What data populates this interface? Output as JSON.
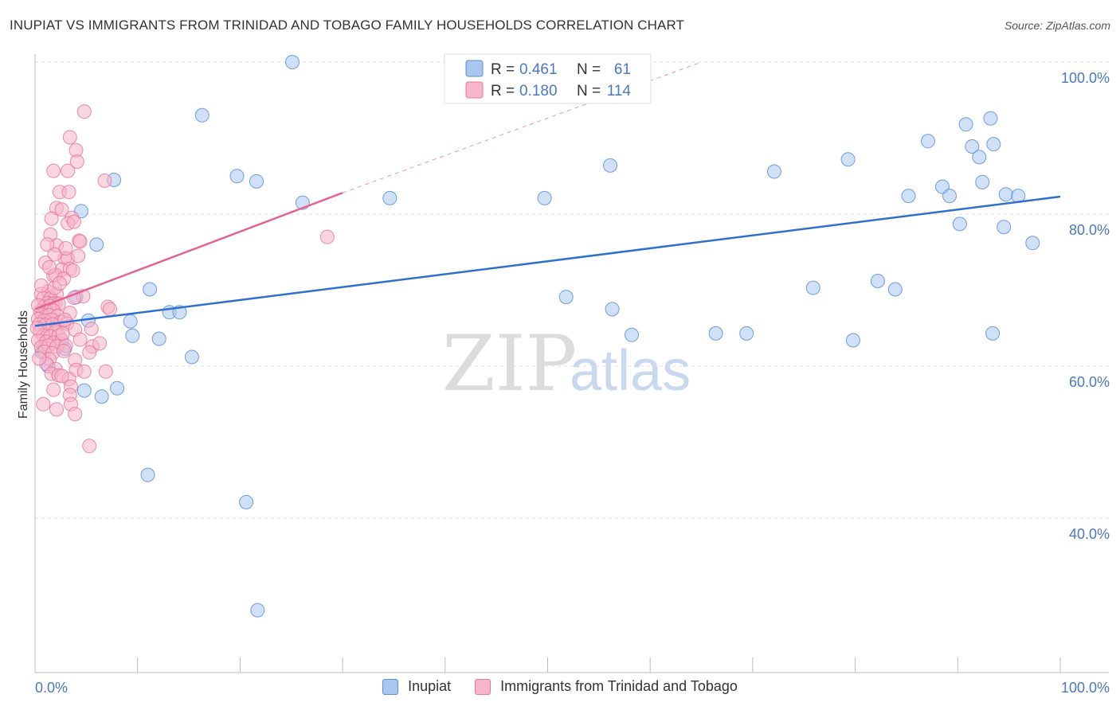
{
  "title": "INUPIAT VS IMMIGRANTS FROM TRINIDAD AND TOBAGO FAMILY HOUSEHOLDS CORRELATION CHART",
  "source": "Source: ZipAtlas.com",
  "watermark": {
    "zip": "ZIP",
    "atlas": "atlas"
  },
  "colors": {
    "blue_fill": "#a9c6ee",
    "blue_stroke": "#5b8fd6",
    "blue_line": "#2f6fd0",
    "pink_fill": "#f6b5c8",
    "pink_stroke": "#e8779c",
    "pink_line": "#e4628f",
    "axis_text": "#4a78c2",
    "grid": "#dddddd"
  },
  "legend_top": {
    "rows": [
      {
        "r_label": "R = ",
        "r_value": "0.461",
        "n_label": "N = ",
        "n_value": "61"
      },
      {
        "r_label": "R = ",
        "r_value": "0.180",
        "n_label": "N = ",
        "n_value": "114"
      }
    ]
  },
  "legend_bottom": {
    "series1": "Inupiat",
    "series2": "Immigrants from Trinidad and Tobago"
  },
  "chart_data": {
    "type": "scatter",
    "title": "INUPIAT VS IMMIGRANTS FROM TRINIDAD AND TOBAGO FAMILY HOUSEHOLDS CORRELATION CHART",
    "xlabel": "",
    "ylabel": "Family Households",
    "xlim": [
      0,
      100
    ],
    "ylim": [
      20,
      102
    ],
    "x_tick_labels": [
      "0.0%",
      "100.0%"
    ],
    "y_ticks": [
      40,
      60,
      80,
      100
    ],
    "y_tick_labels": [
      "40.0%",
      "60.0%",
      "80.0%",
      "100.0%"
    ],
    "grid": true,
    "series": [
      {
        "name": "Inupiat",
        "r": 0.461,
        "n": 61,
        "trend": {
          "x": [
            0,
            100
          ],
          "y": [
            65.3,
            82.3
          ],
          "dashed_extension": false
        },
        "points": [
          [
            25.1,
            100.0
          ],
          [
            7.7,
            84.5
          ],
          [
            16.3,
            93.0
          ],
          [
            19.7,
            85.0
          ],
          [
            21.6,
            84.3
          ],
          [
            26.1,
            81.5
          ],
          [
            34.6,
            82.1
          ],
          [
            49.7,
            82.1
          ],
          [
            56.1,
            86.4
          ],
          [
            72.1,
            85.6
          ],
          [
            79.3,
            87.2
          ],
          [
            85.2,
            82.4
          ],
          [
            87.1,
            89.6
          ],
          [
            88.5,
            83.6
          ],
          [
            89.2,
            82.4
          ],
          [
            90.8,
            91.8
          ],
          [
            91.4,
            88.9
          ],
          [
            92.1,
            87.5
          ],
          [
            92.4,
            84.2
          ],
          [
            93.2,
            92.6
          ],
          [
            93.5,
            89.2
          ],
          [
            94.7,
            82.6
          ],
          [
            95.9,
            82.4
          ],
          [
            97.3,
            76.2
          ],
          [
            4.5,
            80.4
          ],
          [
            6.0,
            76.0
          ],
          [
            4.0,
            69.1
          ],
          [
            5.2,
            66.0
          ],
          [
            8.0,
            57.1
          ],
          [
            6.5,
            56.0
          ],
          [
            4.8,
            56.8
          ],
          [
            9.3,
            65.9
          ],
          [
            9.5,
            64.0
          ],
          [
            11.2,
            70.1
          ],
          [
            12.1,
            63.6
          ],
          [
            13.1,
            67.1
          ],
          [
            14.1,
            67.1
          ],
          [
            15.3,
            61.2
          ],
          [
            1.2,
            64.4
          ],
          [
            0.9,
            62.6
          ],
          [
            1.8,
            66.0
          ],
          [
            2.9,
            62.3
          ],
          [
            0.7,
            61.8
          ],
          [
            1.0,
            65.5
          ],
          [
            1.3,
            60.0
          ],
          [
            11.0,
            45.7
          ],
          [
            20.6,
            42.1
          ],
          [
            21.7,
            27.9
          ],
          [
            51.8,
            69.1
          ],
          [
            56.3,
            67.5
          ],
          [
            58.2,
            64.1
          ],
          [
            66.4,
            64.3
          ],
          [
            69.4,
            64.3
          ],
          [
            75.9,
            70.3
          ],
          [
            82.2,
            71.2
          ],
          [
            83.9,
            70.1
          ],
          [
            90.2,
            78.7
          ],
          [
            94.5,
            78.3
          ],
          [
            79.8,
            63.4
          ],
          [
            93.4,
            64.3
          ],
          [
            2.3,
            63.1
          ]
        ]
      },
      {
        "name": "Immigrants from Trinidad and Tobago",
        "r": 0.18,
        "n": 114,
        "trend": {
          "x": [
            0,
            30
          ],
          "y": [
            67.5,
            82.8
          ],
          "dashed_to": {
            "x": 65,
            "y": 100
          }
        },
        "points": [
          [
            4.8,
            93.5
          ],
          [
            3.4,
            90.1
          ],
          [
            4.0,
            88.4
          ],
          [
            4.1,
            86.9
          ],
          [
            1.8,
            85.7
          ],
          [
            3.2,
            85.7
          ],
          [
            6.8,
            84.4
          ],
          [
            2.4,
            82.9
          ],
          [
            3.3,
            82.9
          ],
          [
            2.1,
            80.8
          ],
          [
            2.6,
            80.6
          ],
          [
            3.6,
            79.5
          ],
          [
            1.6,
            79.4
          ],
          [
            3.2,
            78.8
          ],
          [
            3.8,
            79.0
          ],
          [
            1.5,
            77.3
          ],
          [
            4.3,
            76.5
          ],
          [
            4.4,
            76.4
          ],
          [
            2.1,
            75.9
          ],
          [
            1.2,
            76.0
          ],
          [
            2.9,
            74.2
          ],
          [
            1.9,
            74.7
          ],
          [
            3.2,
            74.1
          ],
          [
            1.0,
            73.6
          ],
          [
            2.6,
            72.7
          ],
          [
            3.4,
            72.8
          ],
          [
            3.7,
            72.6
          ],
          [
            1.8,
            71.9
          ],
          [
            2.0,
            72.0
          ],
          [
            2.8,
            71.5
          ],
          [
            0.6,
            69.5
          ],
          [
            1.3,
            69.8
          ],
          [
            2.1,
            69.5
          ],
          [
            0.8,
            68.9
          ],
          [
            1.5,
            68.9
          ],
          [
            2.0,
            68.3
          ],
          [
            4.7,
            69.2
          ],
          [
            1.2,
            68.3
          ],
          [
            1.7,
            68.2
          ],
          [
            2.3,
            68.2
          ],
          [
            0.9,
            67.8
          ],
          [
            1.4,
            67.9
          ],
          [
            0.5,
            67.2
          ],
          [
            1.0,
            67.3
          ],
          [
            1.8,
            67.3
          ],
          [
            0.7,
            66.7
          ],
          [
            1.4,
            66.7
          ],
          [
            2.2,
            66.6
          ],
          [
            3.4,
            67.0
          ],
          [
            7.1,
            67.8
          ],
          [
            0.3,
            66.2
          ],
          [
            0.9,
            66.0
          ],
          [
            1.6,
            66.1
          ],
          [
            2.5,
            65.8
          ],
          [
            0.4,
            65.5
          ],
          [
            1.0,
            65.4
          ],
          [
            1.7,
            65.5
          ],
          [
            3.1,
            65.6
          ],
          [
            0.5,
            64.6
          ],
          [
            1.2,
            64.6
          ],
          [
            2.0,
            64.6
          ],
          [
            0.8,
            64.0
          ],
          [
            1.5,
            63.9
          ],
          [
            2.3,
            64.0
          ],
          [
            0.3,
            63.4
          ],
          [
            1.1,
            63.2
          ],
          [
            1.8,
            63.1
          ],
          [
            2.6,
            63.4
          ],
          [
            0.6,
            62.5
          ],
          [
            1.3,
            62.7
          ],
          [
            2.1,
            62.6
          ],
          [
            3.0,
            62.7
          ],
          [
            0.9,
            61.9
          ],
          [
            1.7,
            61.7
          ],
          [
            2.8,
            62.0
          ],
          [
            1.4,
            60.9
          ],
          [
            3.9,
            60.8
          ],
          [
            5.6,
            62.6
          ],
          [
            1.1,
            60.3
          ],
          [
            2.0,
            59.6
          ],
          [
            4.0,
            59.5
          ],
          [
            4.8,
            59.3
          ],
          [
            1.6,
            59.0
          ],
          [
            2.3,
            58.8
          ],
          [
            3.3,
            58.3
          ],
          [
            3.5,
            57.3
          ],
          [
            6.9,
            59.3
          ],
          [
            5.3,
            61.8
          ],
          [
            3.4,
            56.2
          ],
          [
            3.5,
            55.0
          ],
          [
            0.8,
            55.0
          ],
          [
            2.1,
            54.3
          ],
          [
            3.9,
            53.7
          ],
          [
            5.3,
            49.5
          ],
          [
            1.8,
            56.9
          ],
          [
            2.6,
            58.7
          ],
          [
            28.5,
            77.0
          ],
          [
            7.3,
            67.5
          ],
          [
            5.5,
            64.9
          ],
          [
            6.3,
            63.0
          ],
          [
            2.7,
            64.3
          ],
          [
            3.9,
            64.8
          ],
          [
            4.4,
            63.5
          ],
          [
            0.4,
            61.0
          ],
          [
            0.2,
            65.0
          ],
          [
            0.3,
            68.0
          ],
          [
            2.9,
            66.1
          ],
          [
            1.9,
            70.3
          ],
          [
            3.8,
            69.0
          ],
          [
            0.6,
            70.6
          ],
          [
            2.4,
            70.9
          ],
          [
            4.2,
            74.5
          ],
          [
            3.0,
            75.5
          ],
          [
            1.4,
            73.0
          ]
        ]
      }
    ]
  }
}
